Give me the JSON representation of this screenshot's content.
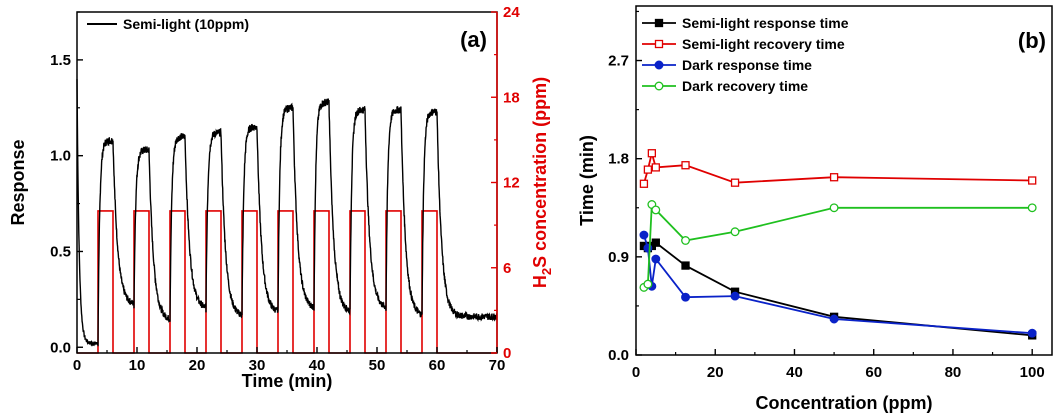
{
  "chart_data": [
    {
      "type": "line",
      "panel_label": "(a)",
      "xlabel": "Time (min)",
      "ylabel": "Response",
      "y2label": {
        "prefix": "H",
        "sub": "2",
        "suffix": "S concentration (ppm)"
      },
      "xlim": [
        0,
        70
      ],
      "ylim": [
        -0.03,
        1.75
      ],
      "y2lim": [
        0,
        24
      ],
      "xticks": [
        "0",
        "10",
        "20",
        "30",
        "40",
        "50",
        "60",
        "70"
      ],
      "yticks": [
        "0.0",
        "0.5",
        "1.0",
        "1.5"
      ],
      "y2ticks": [
        "0",
        "6",
        "12",
        "18",
        "24"
      ],
      "legend": {
        "position": "top-left",
        "entries": [
          "Semi-light (10ppm)"
        ]
      },
      "colors": {
        "response": "#000000",
        "concentration": "#e00000",
        "axis_right": "#e00000"
      },
      "pulses": {
        "concentration_ppm": 10,
        "intervals_min": [
          [
            3.5,
            6
          ],
          [
            9.5,
            12
          ],
          [
            15.5,
            18
          ],
          [
            21.5,
            24
          ],
          [
            27.5,
            30
          ],
          [
            33.5,
            36
          ],
          [
            39.5,
            42
          ],
          [
            45.5,
            48
          ],
          [
            51.5,
            54
          ],
          [
            57.5,
            60
          ]
        ]
      },
      "series": [
        {
          "role": "response",
          "cycles": [
            {
              "on": 3.5,
              "off": 6,
              "base": 0.02,
              "peak": 1.08,
              "recover_to": 0.22
            },
            {
              "on": 9.5,
              "off": 12,
              "base": 0.22,
              "peak": 1.03,
              "recover_to": 0.14
            },
            {
              "on": 15.5,
              "off": 18,
              "base": 0.14,
              "peak": 1.1,
              "recover_to": 0.2
            },
            {
              "on": 21.5,
              "off": 24,
              "base": 0.2,
              "peak": 1.12,
              "recover_to": 0.16
            },
            {
              "on": 27.5,
              "off": 30,
              "base": 0.16,
              "peak": 1.15,
              "recover_to": 0.18
            },
            {
              "on": 33.5,
              "off": 36,
              "base": 0.18,
              "peak": 1.25,
              "recover_to": 0.2
            },
            {
              "on": 39.5,
              "off": 42,
              "base": 0.2,
              "peak": 1.28,
              "recover_to": 0.18
            },
            {
              "on": 45.5,
              "off": 48,
              "base": 0.18,
              "peak": 1.24,
              "recover_to": 0.2
            },
            {
              "on": 51.5,
              "off": 54,
              "base": 0.2,
              "peak": 1.24,
              "recover_to": 0.16
            },
            {
              "on": 57.5,
              "off": 60,
              "base": 0.16,
              "peak": 1.23,
              "recover_to": 0.2
            }
          ],
          "initial": {
            "start_time": 0,
            "start_value": 1.4,
            "floor_value": 0.02
          },
          "tail": {
            "end_time": 70,
            "end_value": 0.16
          }
        }
      ]
    },
    {
      "type": "line",
      "panel_label": "(b)",
      "xlabel": "Concentration (ppm)",
      "ylabel": "Time (min)",
      "xlim": [
        0,
        105
      ],
      "ylim": [
        0,
        3.2
      ],
      "xticks": [
        0,
        20,
        40,
        60,
        80,
        100
      ],
      "yticks": [
        "0.0",
        "0.9",
        "1.8",
        "2.7"
      ],
      "ytick_values": [
        0,
        0.9,
        1.8,
        2.7
      ],
      "legend": {
        "position": "top-left"
      },
      "series": [
        {
          "name": "Semi-light response time",
          "color": "#000000",
          "marker": "square",
          "filled": true,
          "x": [
            2,
            3,
            4,
            5,
            12.5,
            25,
            50,
            100
          ],
          "y": [
            1.0,
            0.98,
            1.0,
            1.03,
            0.82,
            0.58,
            0.35,
            0.18
          ]
        },
        {
          "name": "Semi-light recovery time",
          "color": "#e00000",
          "marker": "square",
          "filled": false,
          "x": [
            2,
            3,
            4,
            5,
            12.5,
            25,
            50,
            100
          ],
          "y": [
            1.57,
            1.7,
            1.85,
            1.72,
            1.74,
            1.58,
            1.63,
            1.6
          ]
        },
        {
          "name": "Dark response time",
          "color": "#0a22c8",
          "marker": "circle",
          "filled": true,
          "x": [
            2,
            3,
            4,
            5,
            12.5,
            25,
            50,
            100
          ],
          "y": [
            1.1,
            0.98,
            0.63,
            0.88,
            0.53,
            0.54,
            0.33,
            0.2
          ]
        },
        {
          "name": "Dark recovery time",
          "color": "#1fc01f",
          "marker": "circle",
          "filled": false,
          "x": [
            2,
            3,
            4,
            5,
            12.5,
            25,
            50,
            100
          ],
          "y": [
            0.62,
            0.65,
            1.38,
            1.33,
            1.05,
            1.13,
            1.35,
            1.35
          ]
        }
      ]
    }
  ]
}
